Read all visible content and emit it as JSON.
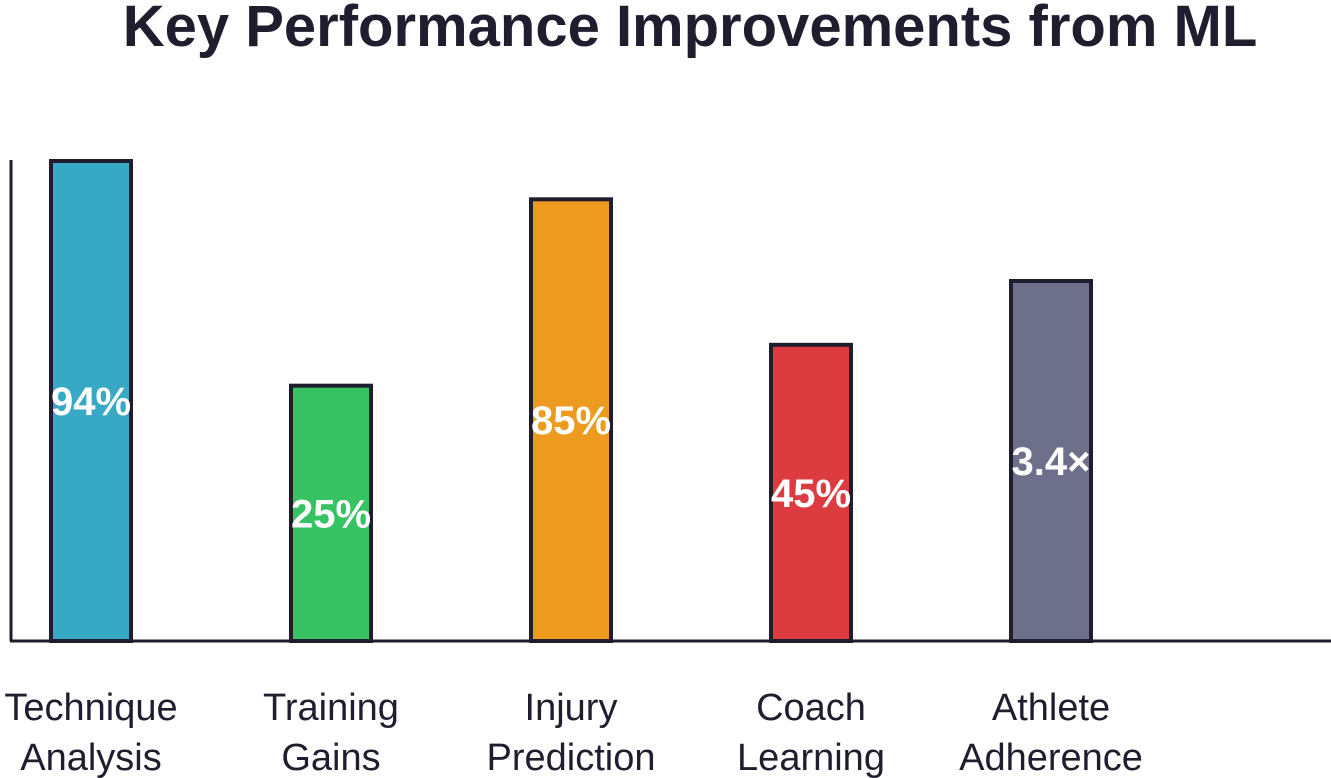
{
  "chart_data": {
    "type": "bar",
    "title": "Key Performance Improvements from ML",
    "xlabel": "",
    "ylabel": "",
    "ylim": [
      0,
      94
    ],
    "grid": false,
    "categories": [
      [
        "Technique",
        "Analysis"
      ],
      [
        "Training",
        "Gains"
      ],
      [
        "Injury",
        "Prediction"
      ],
      [
        "Coach",
        "Learning"
      ],
      [
        "Athlete",
        "Adherence"
      ]
    ],
    "values": [
      94,
      50,
      86.5,
      58,
      70.5
    ],
    "labels": [
      "94%",
      "25%",
      "85%",
      "45%",
      "3.4×"
    ],
    "colors": [
      "#38a9c4",
      "#37c264",
      "#ec9b1f",
      "#dc3c40",
      "#6e6f8a"
    ]
  }
}
